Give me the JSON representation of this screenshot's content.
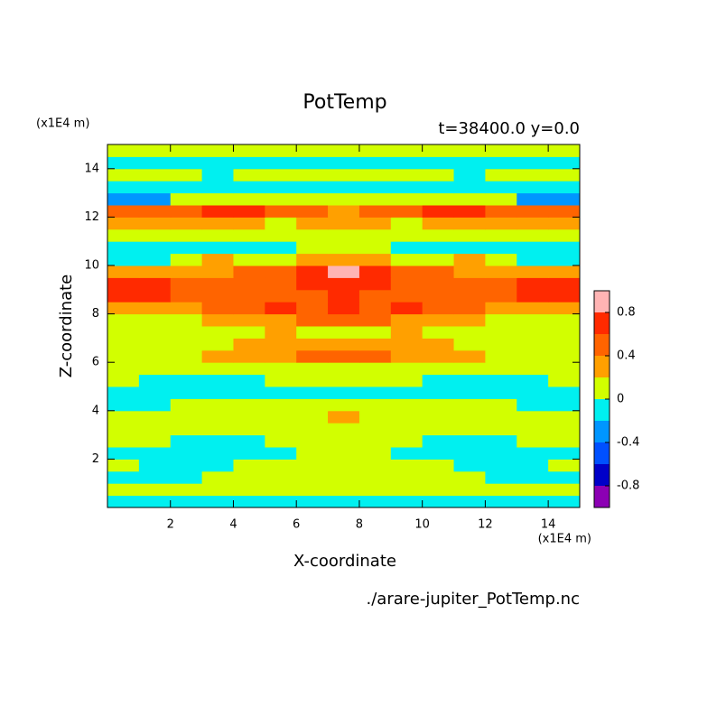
{
  "chart_data": {
    "type": "contour",
    "title": "PotTemp",
    "subtitle": "t=38400.0 y=0.0",
    "y_unit": "(x1E4 m)",
    "x_unit": "(x1E4 m)",
    "xlabel": "X-coordinate",
    "ylabel": "Z-coordinate",
    "footer": "./arare-jupiter_PotTemp.nc",
    "xlim": [
      0,
      15
    ],
    "ylim": [
      0,
      15
    ],
    "xticks": [
      2,
      4,
      6,
      8,
      10,
      12,
      14
    ],
    "yticks": [
      2,
      4,
      6,
      8,
      10,
      12,
      14
    ],
    "levels": [
      -1,
      -0.8,
      -0.6,
      -0.4,
      -0.2,
      0,
      0.2,
      0.4,
      0.6,
      0.8,
      1
    ],
    "colors": [
      "#8c00b4",
      "#0000c8",
      "#0050ff",
      "#0096ff",
      "#00f0f0",
      "#d2ff00",
      "#ffa000",
      "#ff6400",
      "#ff2a00",
      "#ffb4b4"
    ],
    "colorbar_ticks": [
      -0.8,
      -0.4,
      0,
      0.4,
      0.8
    ],
    "z": [
      [
        -0.1,
        -0.1,
        -0.1,
        -0.1,
        -0.1,
        -0.1,
        -0.1,
        -0.1,
        -0.1,
        -0.1,
        -0.1,
        -0.1,
        -0.1,
        -0.1,
        -0.1
      ],
      [
        0.1,
        0.1,
        0.1,
        0.1,
        0.1,
        0.1,
        0.1,
        0.1,
        0.1,
        0.1,
        0.1,
        0.1,
        0.1,
        0.1,
        0.1
      ],
      [
        -0.1,
        -0.1,
        -0.1,
        0.1,
        0.1,
        0.1,
        0.1,
        0.1,
        0.1,
        0.1,
        0.1,
        0.1,
        -0.1,
        -0.1,
        -0.1
      ],
      [
        0.1,
        -0.1,
        -0.1,
        -0.1,
        0.1,
        0.1,
        0.1,
        0.1,
        0.1,
        0.1,
        0.1,
        -0.1,
        -0.1,
        -0.1,
        0.1
      ],
      [
        -0.1,
        -0.1,
        -0.1,
        -0.1,
        -0.1,
        -0.1,
        0.1,
        0.1,
        0.1,
        -0.1,
        -0.1,
        -0.1,
        -0.1,
        -0.1,
        -0.1
      ],
      [
        0.1,
        0.1,
        -0.1,
        -0.1,
        -0.1,
        0.1,
        0.1,
        0.1,
        0.1,
        0.1,
        -0.1,
        -0.1,
        -0.1,
        0.1,
        0.1
      ],
      [
        0.1,
        0.1,
        0.1,
        0.1,
        0.1,
        0.1,
        0.1,
        0.1,
        0.1,
        0.1,
        0.1,
        0.1,
        0.1,
        0.1,
        0.1
      ],
      [
        0.1,
        0.1,
        0.1,
        0.1,
        0.1,
        0.1,
        0.1,
        0.3,
        0.1,
        0.1,
        0.1,
        0.1,
        0.1,
        0.1,
        0.1
      ],
      [
        -0.1,
        -0.1,
        0.1,
        0.1,
        0.1,
        0.1,
        0.1,
        0.1,
        0.1,
        0.1,
        0.1,
        0.1,
        0.1,
        -0.1,
        -0.1
      ],
      [
        -0.1,
        -0.1,
        -0.1,
        -0.1,
        -0.1,
        -0.1,
        -0.1,
        -0.1,
        -0.1,
        -0.1,
        -0.1,
        -0.1,
        -0.1,
        -0.1,
        -0.1
      ],
      [
        0.1,
        -0.1,
        -0.1,
        -0.1,
        -0.1,
        0.1,
        0.1,
        0.1,
        0.1,
        0.1,
        -0.1,
        -0.1,
        -0.1,
        -0.1,
        0.1
      ],
      [
        0.1,
        0.1,
        0.1,
        0.1,
        0.1,
        0.1,
        0.1,
        0.1,
        0.1,
        0.1,
        0.1,
        0.1,
        0.1,
        0.1,
        0.1
      ],
      [
        0.1,
        0.1,
        0.1,
        0.3,
        0.3,
        0.3,
        0.5,
        0.5,
        0.5,
        0.3,
        0.3,
        0.3,
        0.1,
        0.1,
        0.1
      ],
      [
        0.1,
        0.1,
        0.1,
        0.1,
        0.3,
        0.3,
        0.3,
        0.3,
        0.3,
        0.3,
        0.3,
        0.1,
        0.1,
        0.1,
        0.1
      ],
      [
        0.1,
        0.1,
        0.1,
        0.1,
        0.1,
        0.3,
        0.1,
        0.1,
        0.1,
        0.3,
        0.1,
        0.1,
        0.1,
        0.1,
        0.1
      ],
      [
        0.1,
        0.1,
        0.1,
        0.3,
        0.3,
        0.3,
        0.5,
        0.5,
        0.5,
        0.3,
        0.3,
        0.3,
        0.1,
        0.1,
        0.1
      ],
      [
        0.3,
        0.3,
        0.3,
        0.5,
        0.5,
        0.7,
        0.5,
        0.7,
        0.5,
        0.7,
        0.5,
        0.5,
        0.3,
        0.3,
        0.3
      ],
      [
        0.7,
        0.7,
        0.5,
        0.5,
        0.5,
        0.5,
        0.5,
        0.7,
        0.5,
        0.5,
        0.5,
        0.5,
        0.5,
        0.7,
        0.7
      ],
      [
        0.7,
        0.7,
        0.5,
        0.5,
        0.5,
        0.5,
        0.7,
        0.7,
        0.7,
        0.5,
        0.5,
        0.5,
        0.5,
        0.7,
        0.7
      ],
      [
        0.3,
        0.3,
        0.3,
        0.3,
        0.5,
        0.5,
        0.7,
        0.9,
        0.7,
        0.5,
        0.5,
        0.3,
        0.3,
        0.3,
        0.3
      ],
      [
        -0.1,
        -0.1,
        0.1,
        0.3,
        0.1,
        0.1,
        0.3,
        0.3,
        0.3,
        0.1,
        0.1,
        0.3,
        0.1,
        -0.1,
        -0.1
      ],
      [
        -0.1,
        -0.1,
        -0.1,
        -0.1,
        -0.1,
        -0.1,
        0.1,
        0.1,
        0.1,
        -0.1,
        -0.1,
        -0.1,
        -0.1,
        -0.1,
        -0.1
      ],
      [
        0.1,
        0.1,
        0.1,
        0.1,
        0.1,
        0.1,
        0.1,
        0.1,
        0.1,
        0.1,
        0.1,
        0.1,
        0.1,
        0.1,
        0.1
      ],
      [
        0.3,
        0.3,
        0.3,
        0.3,
        0.3,
        0.1,
        0.3,
        0.3,
        0.3,
        0.1,
        0.3,
        0.3,
        0.3,
        0.3,
        0.3
      ],
      [
        0.5,
        0.5,
        0.5,
        0.7,
        0.7,
        0.5,
        0.5,
        0.3,
        0.5,
        0.5,
        0.7,
        0.7,
        0.5,
        0.5,
        0.5
      ],
      [
        -0.3,
        -0.3,
        0.1,
        0.1,
        0.1,
        0.1,
        0.1,
        0.1,
        0.1,
        0.1,
        0.1,
        0.1,
        0.1,
        -0.3,
        -0.3
      ],
      [
        -0.1,
        -0.1,
        -0.1,
        -0.1,
        -0.1,
        -0.1,
        -0.1,
        -0.1,
        -0.1,
        -0.1,
        -0.1,
        -0.1,
        -0.1,
        -0.1,
        -0.1
      ],
      [
        0.1,
        0.1,
        0.1,
        -0.1,
        0.1,
        0.1,
        0.1,
        0.1,
        0.1,
        0.1,
        0.1,
        -0.1,
        0.1,
        0.1,
        0.1
      ],
      [
        -0.1,
        -0.1,
        -0.1,
        -0.1,
        -0.1,
        -0.1,
        -0.1,
        -0.1,
        -0.1,
        -0.1,
        -0.1,
        -0.1,
        -0.1,
        -0.1,
        -0.1
      ],
      [
        0.1,
        0.1,
        0.1,
        0.1,
        0.1,
        0.1,
        0.1,
        0.1,
        0.1,
        0.1,
        0.1,
        0.1,
        0.1,
        0.1,
        0.1
      ]
    ]
  }
}
